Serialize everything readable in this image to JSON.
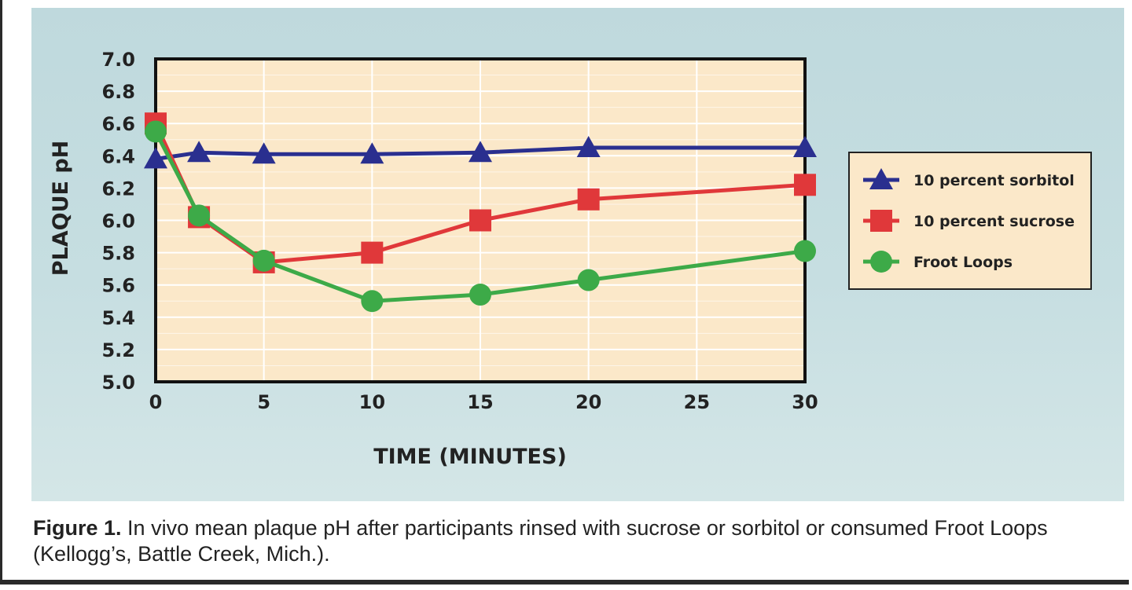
{
  "chart_data": {
    "type": "line",
    "title": "",
    "xlabel": "TIME (MINUTES)",
    "ylabel": "PLAQUE pH",
    "xlim": [
      0,
      30
    ],
    "ylim": [
      5.0,
      7.0
    ],
    "xticks": [
      0,
      5,
      10,
      15,
      20,
      25,
      30
    ],
    "xtick_labels": [
      "0",
      "5",
      "10",
      "15",
      "20",
      "25",
      "30"
    ],
    "yticks": [
      5.0,
      5.2,
      5.4,
      5.6,
      5.8,
      6.0,
      6.2,
      6.4,
      6.6,
      6.8,
      7.0
    ],
    "ytick_labels": [
      "5.0",
      "5.2",
      "5.4",
      "5.6",
      "5.8",
      "6.0",
      "6.2",
      "6.4",
      "6.6",
      "6.8",
      "7.0"
    ],
    "grid": true,
    "legend_position": "right",
    "series": [
      {
        "name": "10 percent sorbitol",
        "marker": "triangle",
        "color": "#2a2f8f",
        "x": [
          0,
          2,
          5,
          10,
          15,
          20,
          30
        ],
        "y": [
          6.38,
          6.42,
          6.41,
          6.41,
          6.42,
          6.45,
          6.45
        ]
      },
      {
        "name": "10 percent sucrose",
        "marker": "square",
        "color": "#e0383a",
        "x": [
          0,
          2,
          5,
          10,
          15,
          20,
          30
        ],
        "y": [
          6.6,
          6.02,
          5.74,
          5.8,
          6.0,
          6.13,
          6.22
        ]
      },
      {
        "name": "Froot Loops",
        "marker": "circle",
        "color": "#3daa48",
        "x": [
          0,
          2,
          5,
          10,
          15,
          20,
          30
        ],
        "y": [
          6.55,
          6.03,
          5.75,
          5.5,
          5.54,
          5.63,
          5.81
        ]
      }
    ]
  },
  "caption": {
    "label": "Figure 1.",
    "text": "In vivo mean plaque pH after participants rinsed with sucrose or sorbitol or consumed Froot Loops (Kellogg’s, Battle Creek, Mich.)."
  },
  "colors": {
    "panel_background": "#c3dcdf",
    "plot_background": "#fbe8c9",
    "grid": "#ffffff"
  }
}
